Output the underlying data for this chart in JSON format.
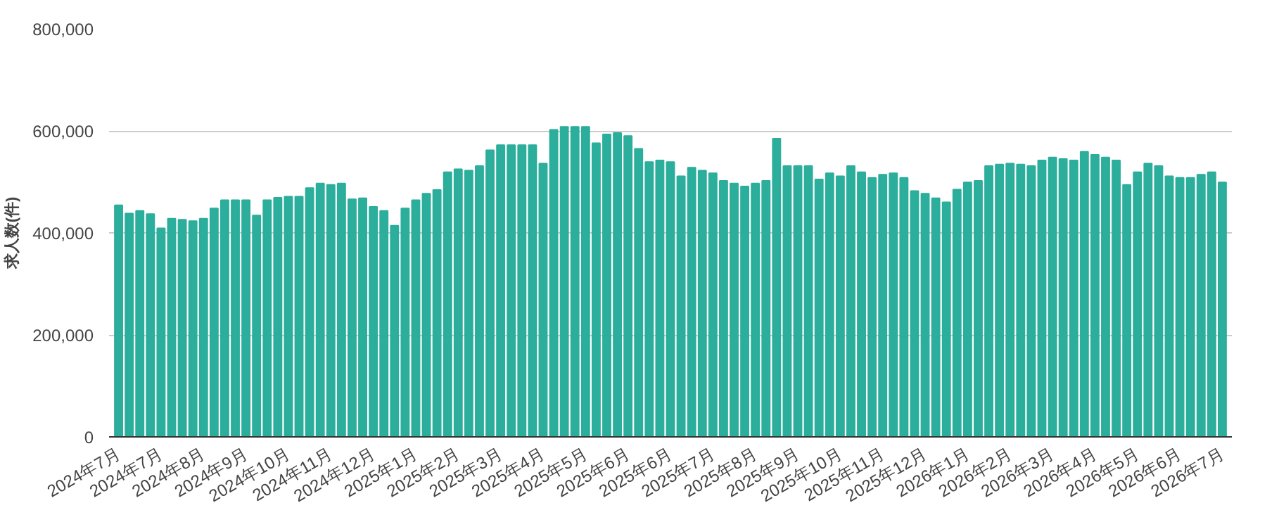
{
  "chart_data": {
    "type": "bar",
    "ylabel": "求人数(件)",
    "categories": [
      "2024年7月",
      null,
      null,
      null,
      "2024年7月",
      null,
      null,
      null,
      "2024年8月",
      null,
      null,
      null,
      "2024年9月",
      null,
      null,
      null,
      "2024年10月",
      null,
      null,
      null,
      "2024年11月",
      null,
      null,
      null,
      "2024年12月",
      null,
      null,
      null,
      "2025年1月",
      null,
      null,
      null,
      "2025年2月",
      null,
      null,
      null,
      "2025年3月",
      null,
      null,
      null,
      "2025年4月",
      null,
      null,
      null,
      "2025年5月",
      null,
      null,
      null,
      "2025年6月",
      null,
      null,
      null,
      "2025年6月",
      null,
      null,
      null,
      "2025年7月",
      null,
      null,
      null,
      "2025年8月",
      null,
      null,
      null,
      "2025年9月",
      null,
      null,
      null,
      "2025年10月",
      null,
      null,
      null,
      "2025年11月",
      null,
      null,
      null,
      "2025年12月",
      null,
      null,
      null,
      "2026年1月",
      null,
      null,
      null,
      "2026年2月",
      null,
      null,
      null,
      "2026年3月",
      null,
      null,
      null,
      "2026年4月",
      null,
      null,
      null,
      "2026年5月",
      null,
      null,
      null,
      "2026年6月",
      null,
      null,
      null,
      "2026年7月"
    ],
    "values": [
      454000,
      438000,
      443000,
      437000,
      409000,
      428000,
      426000,
      423000,
      428000,
      448000,
      464000,
      464000,
      464000,
      434000,
      464000,
      469000,
      471000,
      471000,
      488000,
      497000,
      494000,
      497000,
      466000,
      468000,
      451000,
      443000,
      414000,
      448000,
      464000,
      477000,
      484000,
      519000,
      525000,
      522000,
      531000,
      562000,
      572000,
      572000,
      572000,
      572000,
      536000,
      602000,
      608000,
      608000,
      608000,
      576000,
      593000,
      596000,
      590000,
      565000,
      539000,
      542000,
      539000,
      511000,
      528000,
      522000,
      517000,
      502000,
      497000,
      491000,
      497000,
      502000,
      585000,
      531000,
      531000,
      531000,
      505000,
      517000,
      511000,
      531000,
      519000,
      508000,
      514000,
      517000,
      508000,
      482000,
      477000,
      468000,
      460000,
      485000,
      499000,
      502000,
      531000,
      534000,
      536000,
      534000,
      531000,
      542000,
      548000,
      545000,
      542000,
      559000,
      553000,
      548000,
      542000,
      494000,
      519000,
      536000,
      531000,
      511000,
      508000,
      508000,
      514000,
      519000,
      499000
    ],
    "color": "#2bae9b",
    "ylim": [
      0,
      800000
    ],
    "yticks": [
      {
        "value": 0,
        "label": "0"
      },
      {
        "value": 200000,
        "label": "200,000"
      },
      {
        "value": 400000,
        "label": "400,000"
      },
      {
        "value": 600000,
        "label": "600,000"
      },
      {
        "value": 800000,
        "label": "800,000"
      }
    ],
    "grid": "y"
  }
}
